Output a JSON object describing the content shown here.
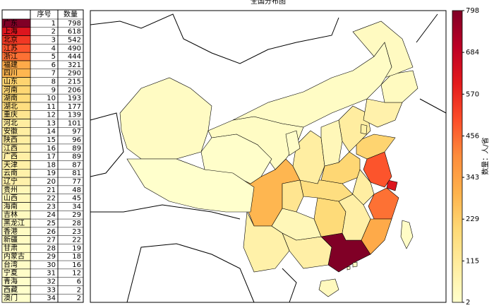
{
  "title": "全国分布图",
  "table": {
    "header": [
      "序号",
      "数量"
    ],
    "rows": [
      [
        "广东",
        1,
        798
      ],
      [
        "上海",
        2,
        618
      ],
      [
        "北京",
        3,
        542
      ],
      [
        "江苏",
        4,
        490
      ],
      [
        "浙江",
        5,
        444
      ],
      [
        "福建",
        6,
        321
      ],
      [
        "四川",
        7,
        290
      ],
      [
        "山东",
        8,
        215
      ],
      [
        "河南",
        9,
        206
      ],
      [
        "湖南",
        10,
        193
      ],
      [
        "湖北",
        11,
        177
      ],
      [
        "重庆",
        12,
        139
      ],
      [
        "河北",
        13,
        101
      ],
      [
        "安徽",
        14,
        97
      ],
      [
        "陕西",
        15,
        96
      ],
      [
        "江西",
        16,
        89
      ],
      [
        "广西",
        17,
        89
      ],
      [
        "天津",
        18,
        87
      ],
      [
        "云南",
        19,
        81
      ],
      [
        "辽宁",
        20,
        77
      ],
      [
        "贵州",
        21,
        48
      ],
      [
        "山西",
        22,
        45
      ],
      [
        "海南",
        23,
        34
      ],
      [
        "吉林",
        24,
        29
      ],
      [
        "黑龙江",
        25,
        28
      ],
      [
        "香港",
        26,
        23
      ],
      [
        "新疆",
        27,
        22
      ],
      [
        "甘肃",
        28,
        19
      ],
      [
        "内蒙古",
        29,
        18
      ],
      [
        "台湾",
        30,
        16
      ],
      [
        "宁夏",
        31,
        12
      ],
      [
        "青海",
        32,
        6
      ],
      [
        "西藏",
        33,
        2
      ],
      [
        "澳门",
        34,
        2
      ]
    ]
  },
  "colorbar": {
    "label": "数量：人/省",
    "range": [
      2,
      798
    ],
    "ticks": [
      2,
      115,
      229,
      343,
      456,
      570,
      684,
      798
    ]
  }
}
